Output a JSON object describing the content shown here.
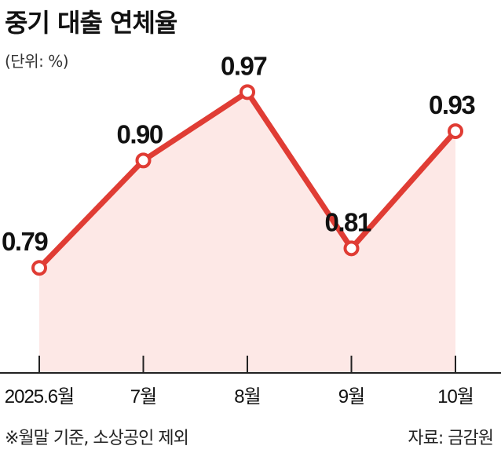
{
  "title": "중기 대출 연체율",
  "unit": "(단위: %)",
  "footnote": "※월말 기준, 소상공인 제외",
  "source": "자료: 금감원",
  "colors": {
    "line": "#e03c34",
    "fill": "#fde8e6",
    "axis": "#222222"
  },
  "chart_data": {
    "type": "area",
    "categories": [
      "2025.6월",
      "7월",
      "8월",
      "9월",
      "10월"
    ],
    "values": [
      0.79,
      0.9,
      0.97,
      0.81,
      0.93
    ],
    "data_labels": [
      "0.79",
      "0.90",
      "0.97",
      "0.81",
      "0.93"
    ],
    "title": "중기 대출 연체율",
    "ylabel": "",
    "ylim": [
      0.68,
      1.0
    ],
    "grid": false,
    "legend": "none"
  }
}
